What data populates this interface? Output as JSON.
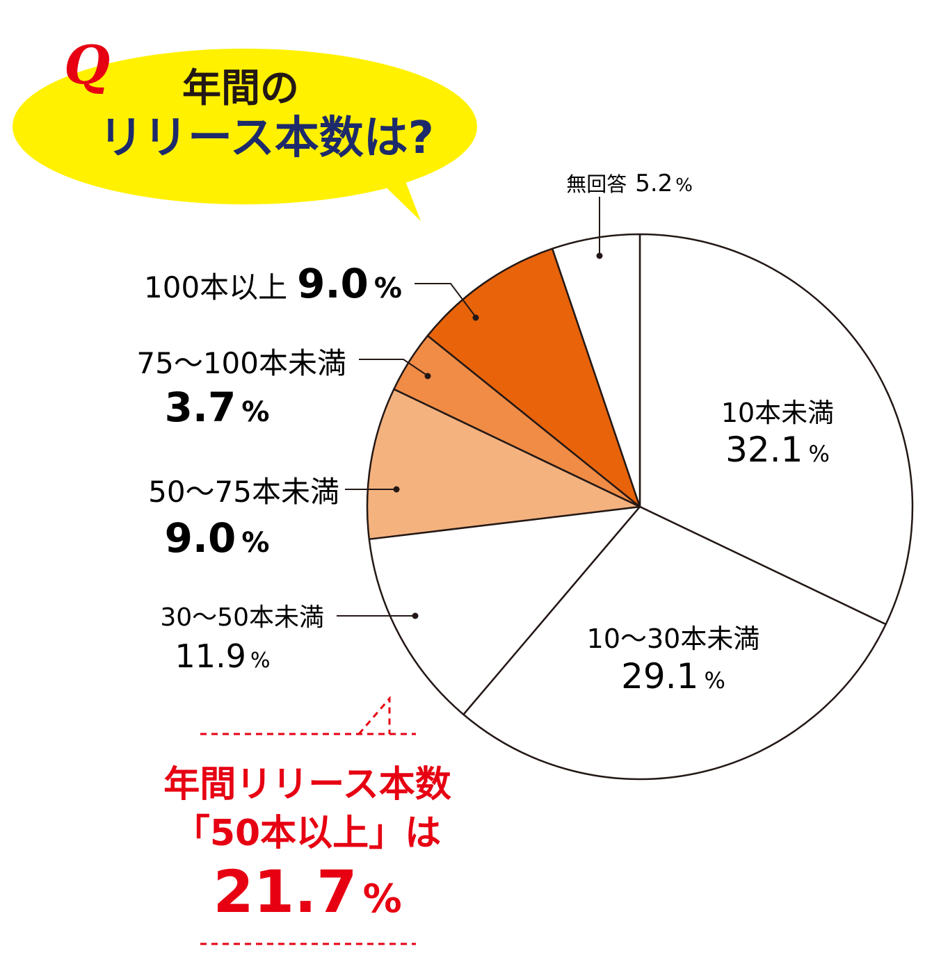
{
  "header": {
    "q_mark": "Q",
    "title_line1": "年間の",
    "title_line2": "リリース本数は?"
  },
  "chart_data": {
    "type": "pie",
    "direction": "clockwise",
    "start": "12 o'clock",
    "percent_suffix": "%",
    "slices": [
      {
        "label": "10本未満",
        "value": 32.1,
        "value_text": "32.1",
        "color": "#ffffff"
      },
      {
        "label": "10〜30本未満",
        "value": 29.1,
        "value_text": "29.1",
        "color": "#ffffff"
      },
      {
        "label": "30〜50本未満",
        "value": 11.9,
        "value_text": "11.9",
        "color": "#ffffff"
      },
      {
        "label": "50〜75本未満",
        "value": 9.0,
        "value_text": "9.0",
        "color": "#f4b27f"
      },
      {
        "label": "75〜100本未満",
        "value": 3.7,
        "value_text": "3.7",
        "color": "#f08c46"
      },
      {
        "label": "100本以上",
        "value": 9.0,
        "value_text": "9.0",
        "color": "#e8630a"
      },
      {
        "label": "無回答",
        "value": 5.2,
        "value_text": "5.2",
        "color": "#ffffff"
      }
    ]
  },
  "summary": {
    "line1": "年間リリース本数",
    "line2": "「50本以上」は",
    "value": "21.7",
    "suffix": "%"
  },
  "colors": {
    "bubble": "#fff100",
    "title_navy": "#1d2a6b",
    "accent_red": "#e60012",
    "ink": "#231815"
  }
}
